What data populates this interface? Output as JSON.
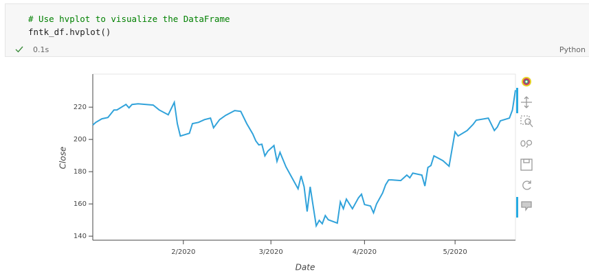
{
  "cell": {
    "code": [
      "# Use hvplot to visualize the DataFrame",
      "fntk_df.hvplot()"
    ],
    "status": "0.1s",
    "language": "Python"
  },
  "chart_data": {
    "type": "line",
    "x_label": "Date",
    "y_label": "Close",
    "x": [
      2,
      3,
      5,
      7,
      9,
      10,
      13,
      14,
      15,
      17,
      22,
      24,
      27,
      29,
      30,
      31,
      34,
      35,
      37,
      39,
      41,
      42,
      44,
      46,
      49,
      51,
      53,
      55,
      56,
      57,
      58,
      59,
      60,
      62,
      63,
      64,
      66,
      70,
      71,
      72,
      73,
      74,
      76,
      77,
      78,
      79,
      80,
      83,
      84,
      85,
      86,
      88,
      90,
      91,
      92,
      94,
      95,
      96,
      98,
      99,
      100,
      101,
      104,
      106,
      107,
      108,
      111,
      112,
      113,
      114,
      115,
      118,
      120,
      122,
      123,
      126,
      128,
      129,
      133,
      135,
      136,
      137,
      140,
      141,
      142
    ],
    "series": [
      {
        "color": "#30a2da",
        "values": [
          208.9,
          210.6,
          212.8,
          213.6,
          218.3,
          218.3,
          221.7,
          219.6,
          221.7,
          222.1,
          221.3,
          218.3,
          215.3,
          223,
          209.8,
          202.1,
          203.8,
          209.8,
          210.6,
          212.3,
          213.2,
          207.2,
          212.3,
          214.9,
          217.9,
          217.4,
          209.8,
          203.4,
          199.1,
          196.6,
          197,
          189.8,
          192.8,
          196.2,
          186.4,
          192,
          183,
          169.4,
          177.4,
          170.6,
          155.3,
          170.6,
          146.4,
          149.8,
          147.7,
          152.8,
          150.2,
          148.1,
          161.3,
          157,
          163,
          157,
          163.8,
          166,
          159.6,
          158.7,
          154.5,
          160,
          166.8,
          171.9,
          174.9,
          174.9,
          174.5,
          177.9,
          176.2,
          179.1,
          177.9,
          171.1,
          182.6,
          183.8,
          189.8,
          186.8,
          183.4,
          204.7,
          202.1,
          205.5,
          209.4,
          211.9,
          213.2,
          205.5,
          207.7,
          211.5,
          213.2,
          218.3,
          230.6
        ]
      }
    ],
    "xlim": [
      2,
      142
    ],
    "ylim": [
      137.5,
      240.5
    ],
    "xticks": [
      {
        "value": 32,
        "label": "2/2020"
      },
      {
        "value": 61,
        "label": "3/2020"
      },
      {
        "value": 92,
        "label": "4/2020"
      },
      {
        "value": 122,
        "label": "5/2020"
      }
    ],
    "yticks": [
      140,
      160,
      180,
      200,
      220
    ],
    "grid": false
  }
}
